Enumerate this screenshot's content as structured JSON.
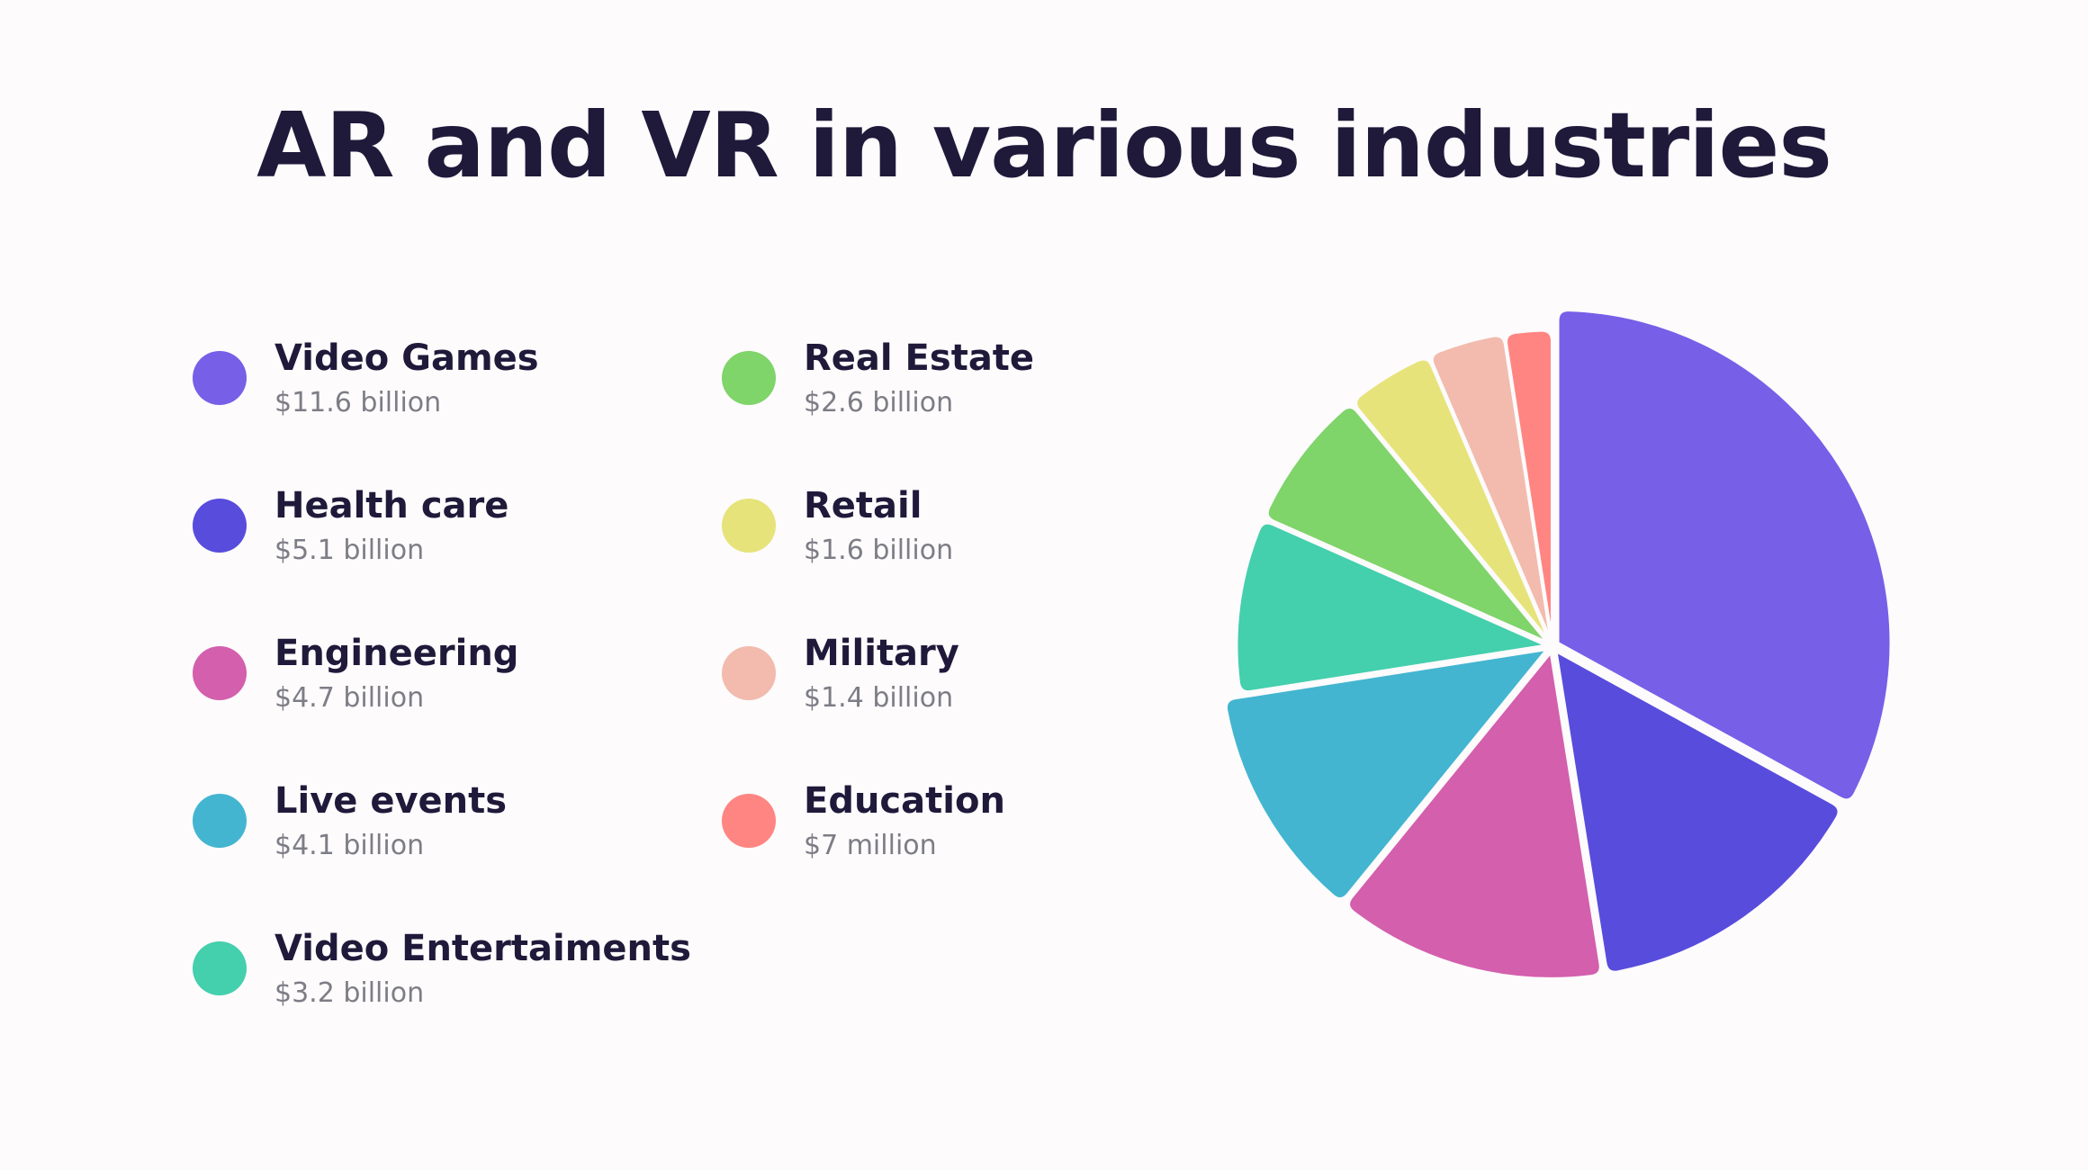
{
  "chart_data": {
    "type": "pie",
    "title": "AR and VR in various industries",
    "slices": [
      {
        "label": "Video Games",
        "value": 11.6,
        "value_text": "$11.6 billion",
        "color": "#775fe8"
      },
      {
        "label": "Health care",
        "value": 5.1,
        "value_text": "$5.1 billion",
        "color": "#584cdd"
      },
      {
        "label": "Engineering",
        "value": 4.7,
        "value_text": "$4.7 billion",
        "color": "#d35fad"
      },
      {
        "label": "Live events",
        "value": 4.1,
        "value_text": "$4.1 billion",
        "color": "#43b5d0"
      },
      {
        "label": "Video Entertaiments",
        "value": 3.2,
        "value_text": "$3.2 billion",
        "color": "#44cfad"
      },
      {
        "label": "Real Estate",
        "value": 2.6,
        "value_text": "$2.6 billion",
        "color": "#7fd46a"
      },
      {
        "label": "Retail",
        "value": 1.6,
        "value_text": "$1.6 billion",
        "color": "#e6e37a"
      },
      {
        "label": "Military",
        "value": 1.4,
        "value_text": "$1.4 billion",
        "color": "#f2bbae"
      },
      {
        "label": "Education",
        "value": 0.007,
        "value_text": "$7 million",
        "color": "#ff8582"
      }
    ],
    "legend": "left"
  }
}
